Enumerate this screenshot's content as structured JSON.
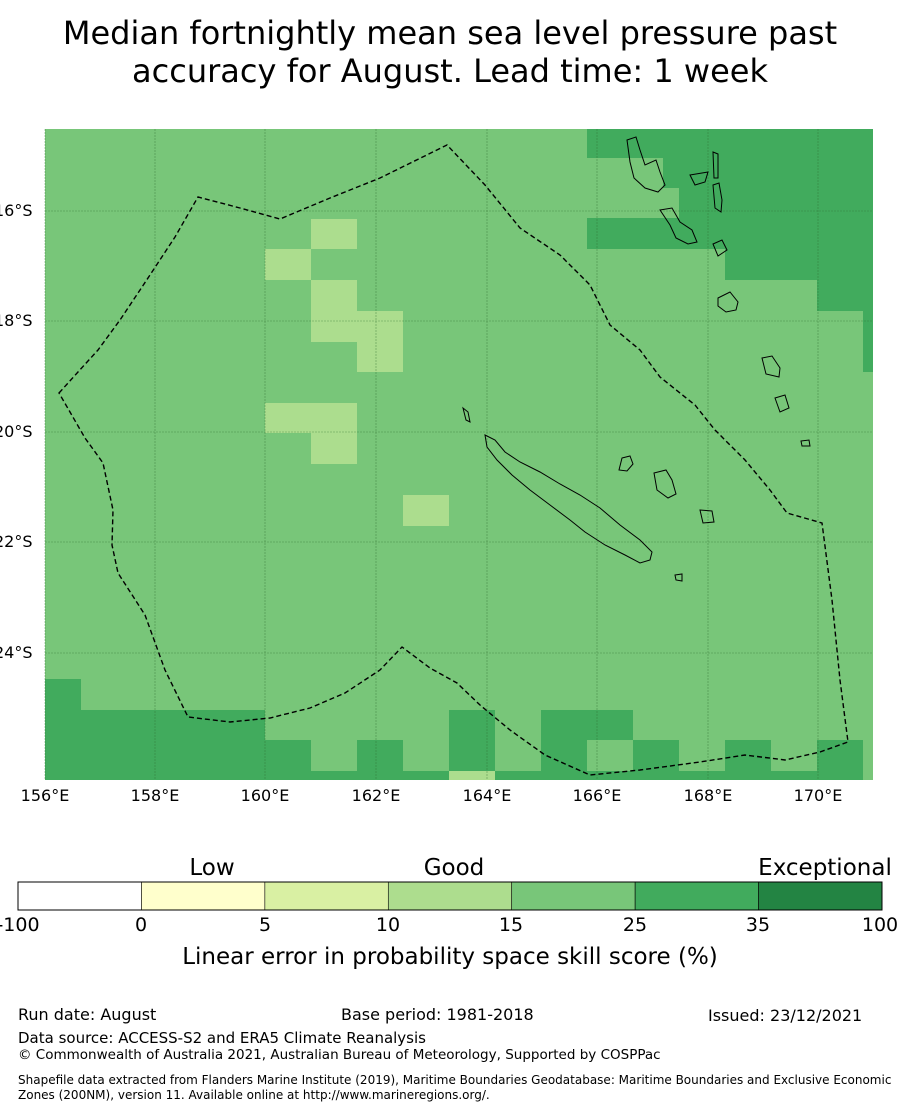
{
  "title_line1": "Median fortnightly mean sea level pressure past",
  "title_line2": "accuracy for August. Lead time: 1 week",
  "map": {
    "lon_labels": [
      "156°E",
      "158°E",
      "160°E",
      "162°E",
      "164°E",
      "166°E",
      "168°E",
      "170°E"
    ],
    "lat_labels": [
      "16°S",
      "18°S",
      "20°S",
      "22°S",
      "24°S"
    ],
    "colors": {
      "c10_15": "#acdd8e",
      "c15_25": "#78c679",
      "c25_35": "#41ab5d",
      "land_outline": "#000000",
      "eez_boundary": "#000000"
    }
  },
  "colorbar": {
    "headings": [
      "Low",
      "Good",
      "Exceptional"
    ],
    "ticks": [
      "-100",
      "0",
      "5",
      "10",
      "15",
      "25",
      "35",
      "100"
    ],
    "colors": [
      "#ffffff",
      "#ffffcc",
      "#d9f0a3",
      "#addd8e",
      "#78c679",
      "#41ab5d",
      "#238443"
    ],
    "label": "Linear error in probability space skill score (%)"
  },
  "footer": {
    "run_date": "Run date: August",
    "base_period": "Base period: 1981-2018",
    "issued": "Issued: 23/12/2021",
    "data_source": "Data source: ACCESS-S2 and ERA5 Climate Reanalysis",
    "copyright": "© Commonwealth of Australia 2021, Australian Bureau of Meteorology, Supported by COSPPac",
    "shapefile_line1": "Shapefile data extracted from Flanders Marine Institute (2019), Maritime Boundaries Geodatabase: Maritime Boundaries and Exclusive Economic",
    "shapefile_line2": "Zones (200NM), version 11. Available online at http://www.marineregions.org/."
  }
}
